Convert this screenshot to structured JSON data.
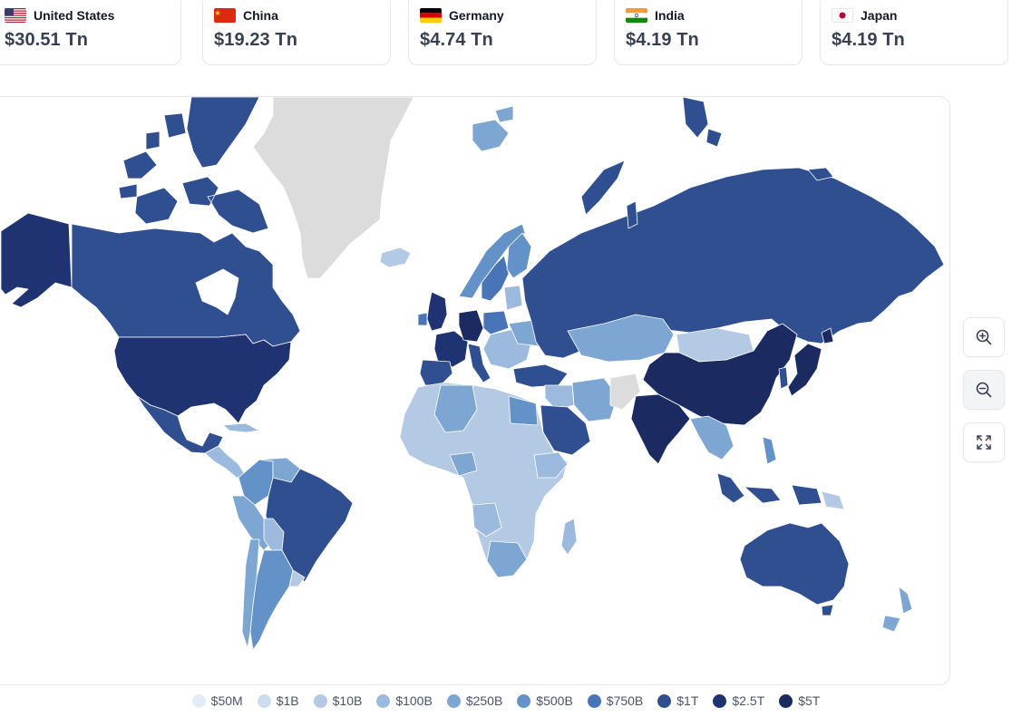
{
  "cards": [
    {
      "country": "United States",
      "value": "$30.51 Tn",
      "flag": "us-flag"
    },
    {
      "country": "China",
      "value": "$19.23 Tn",
      "flag": "cn-flag"
    },
    {
      "country": "Germany",
      "value": "$4.74 Tn",
      "flag": "de-flag"
    },
    {
      "country": "India",
      "value": "$4.19 Tn",
      "flag": "in-flag"
    },
    {
      "country": "Japan",
      "value": "$4.19 Tn",
      "flag": "jp-flag"
    }
  ],
  "controls": {
    "zoom_in": "zoom-in-icon",
    "zoom_out": "zoom-out-icon",
    "fit": "expand-icon"
  },
  "legend": [
    {
      "label": "$50M",
      "color": "#e3ebf6"
    },
    {
      "label": "$1B",
      "color": "#cddcef"
    },
    {
      "label": "$10B",
      "color": "#b3c9e4"
    },
    {
      "label": "$100B",
      "color": "#9bbadd"
    },
    {
      "label": "$250B",
      "color": "#7ea6d3"
    },
    {
      "label": "$500B",
      "color": "#6392c8"
    },
    {
      "label": "$750B",
      "color": "#4a74b8"
    },
    {
      "label": "$1T",
      "color": "#2f4f90"
    },
    {
      "label": "$2.5T",
      "color": "#1f3272"
    },
    {
      "label": "$5T",
      "color": "#1b2a60"
    }
  ],
  "map_colors": {
    "no_data": "#dcdcdc",
    "ocean": "#ffffff"
  }
}
